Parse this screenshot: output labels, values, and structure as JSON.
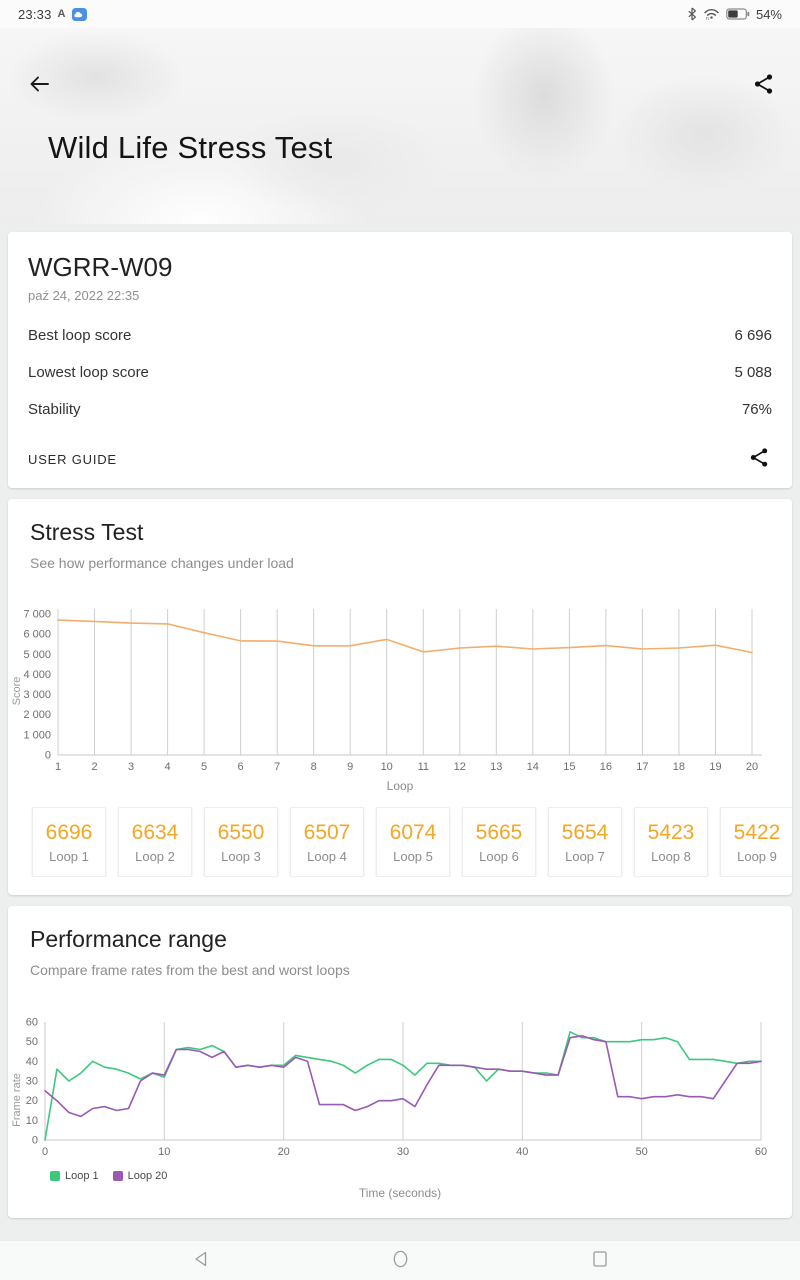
{
  "status_bar": {
    "time": "23:33",
    "app_badge": "A",
    "battery_percent": "54%"
  },
  "header": {
    "title": "Wild Life Stress Test"
  },
  "result_card": {
    "device": "WGRR-W09",
    "datetime": "paź 24, 2022 22:35",
    "rows": [
      {
        "label": "Best loop score",
        "value": "6 696"
      },
      {
        "label": "Lowest loop score",
        "value": "5 088"
      },
      {
        "label": "Stability",
        "value": "76%"
      }
    ],
    "user_guide": "USER GUIDE"
  },
  "stress_test": {
    "title": "Stress Test",
    "subtitle": "See how performance changes under load",
    "tiles": [
      {
        "score": "6696",
        "label": "Loop 1"
      },
      {
        "score": "6634",
        "label": "Loop 2"
      },
      {
        "score": "6550",
        "label": "Loop 3"
      },
      {
        "score": "6507",
        "label": "Loop 4"
      },
      {
        "score": "6074",
        "label": "Loop 5"
      },
      {
        "score": "5665",
        "label": "Loop 6"
      },
      {
        "score": "5654",
        "label": "Loop 7"
      },
      {
        "score": "5423",
        "label": "Loop 8"
      },
      {
        "score": "5422",
        "label": "Loop 9"
      }
    ]
  },
  "performance_range": {
    "title": "Performance range",
    "subtitle": "Compare frame rates from the best and worst loops"
  },
  "chart_data": [
    {
      "type": "line",
      "title": "Stress Test loop scores",
      "xlabel": "Loop",
      "ylabel": "Score",
      "xlim": [
        1,
        20
      ],
      "ylim": [
        0,
        7000
      ],
      "grid": "vertical",
      "line_color": "#f2ae6d",
      "x": [
        1,
        2,
        3,
        4,
        5,
        6,
        7,
        8,
        9,
        10,
        11,
        12,
        13,
        14,
        15,
        16,
        17,
        18,
        19,
        20
      ],
      "values": [
        6696,
        6634,
        6550,
        6507,
        6074,
        5665,
        5654,
        5423,
        5422,
        5741,
        5120,
        5310,
        5400,
        5260,
        5330,
        5430,
        5260,
        5310,
        5450,
        5088
      ],
      "ytick_labels": [
        "0",
        "1 000",
        "2 000",
        "3 000",
        "4 000",
        "5 000",
        "6 000",
        "7 000"
      ]
    },
    {
      "type": "line",
      "title": "Performance range frame rates",
      "xlabel": "Time (seconds)",
      "ylabel": "Frame rate",
      "xlim": [
        0,
        60
      ],
      "ylim": [
        0,
        60
      ],
      "grid": "vertical",
      "legend_position": "bottom-left",
      "xticks": [
        0,
        10,
        20,
        30,
        40,
        50,
        60
      ],
      "yticks": [
        0,
        10,
        20,
        30,
        40,
        50,
        60
      ],
      "x_start": 0,
      "x_step": 1,
      "series": [
        {
          "name": "Loop 1",
          "color": "#3ec87e",
          "values": [
            0,
            36,
            30,
            34,
            40,
            37,
            36,
            34,
            31,
            34,
            32,
            46,
            47,
            46,
            48,
            45,
            37,
            38,
            37,
            38,
            38,
            43,
            42,
            41,
            40,
            38,
            34,
            38,
            41,
            41,
            38,
            33,
            39,
            39,
            38,
            38,
            37,
            30,
            36,
            35,
            35,
            34,
            34,
            33,
            55,
            52,
            52,
            50,
            50,
            50,
            51,
            51,
            52,
            50,
            41,
            41,
            41,
            40,
            39,
            40,
            40
          ]
        },
        {
          "name": "Loop 20",
          "color": "#9b59b6",
          "values": [
            25,
            20,
            14,
            12,
            16,
            17,
            15,
            16,
            30,
            34,
            33,
            46,
            46,
            45,
            42,
            45,
            37,
            38,
            37,
            38,
            37,
            42,
            40,
            18,
            18,
            18,
            15,
            17,
            20,
            20,
            21,
            17,
            28,
            38,
            38,
            38,
            37,
            36,
            36,
            35,
            35,
            34,
            33,
            33,
            52,
            53,
            51,
            50,
            22,
            22,
            21,
            22,
            22,
            23,
            22,
            22,
            21,
            30,
            39,
            39,
            40
          ]
        }
      ]
    }
  ]
}
